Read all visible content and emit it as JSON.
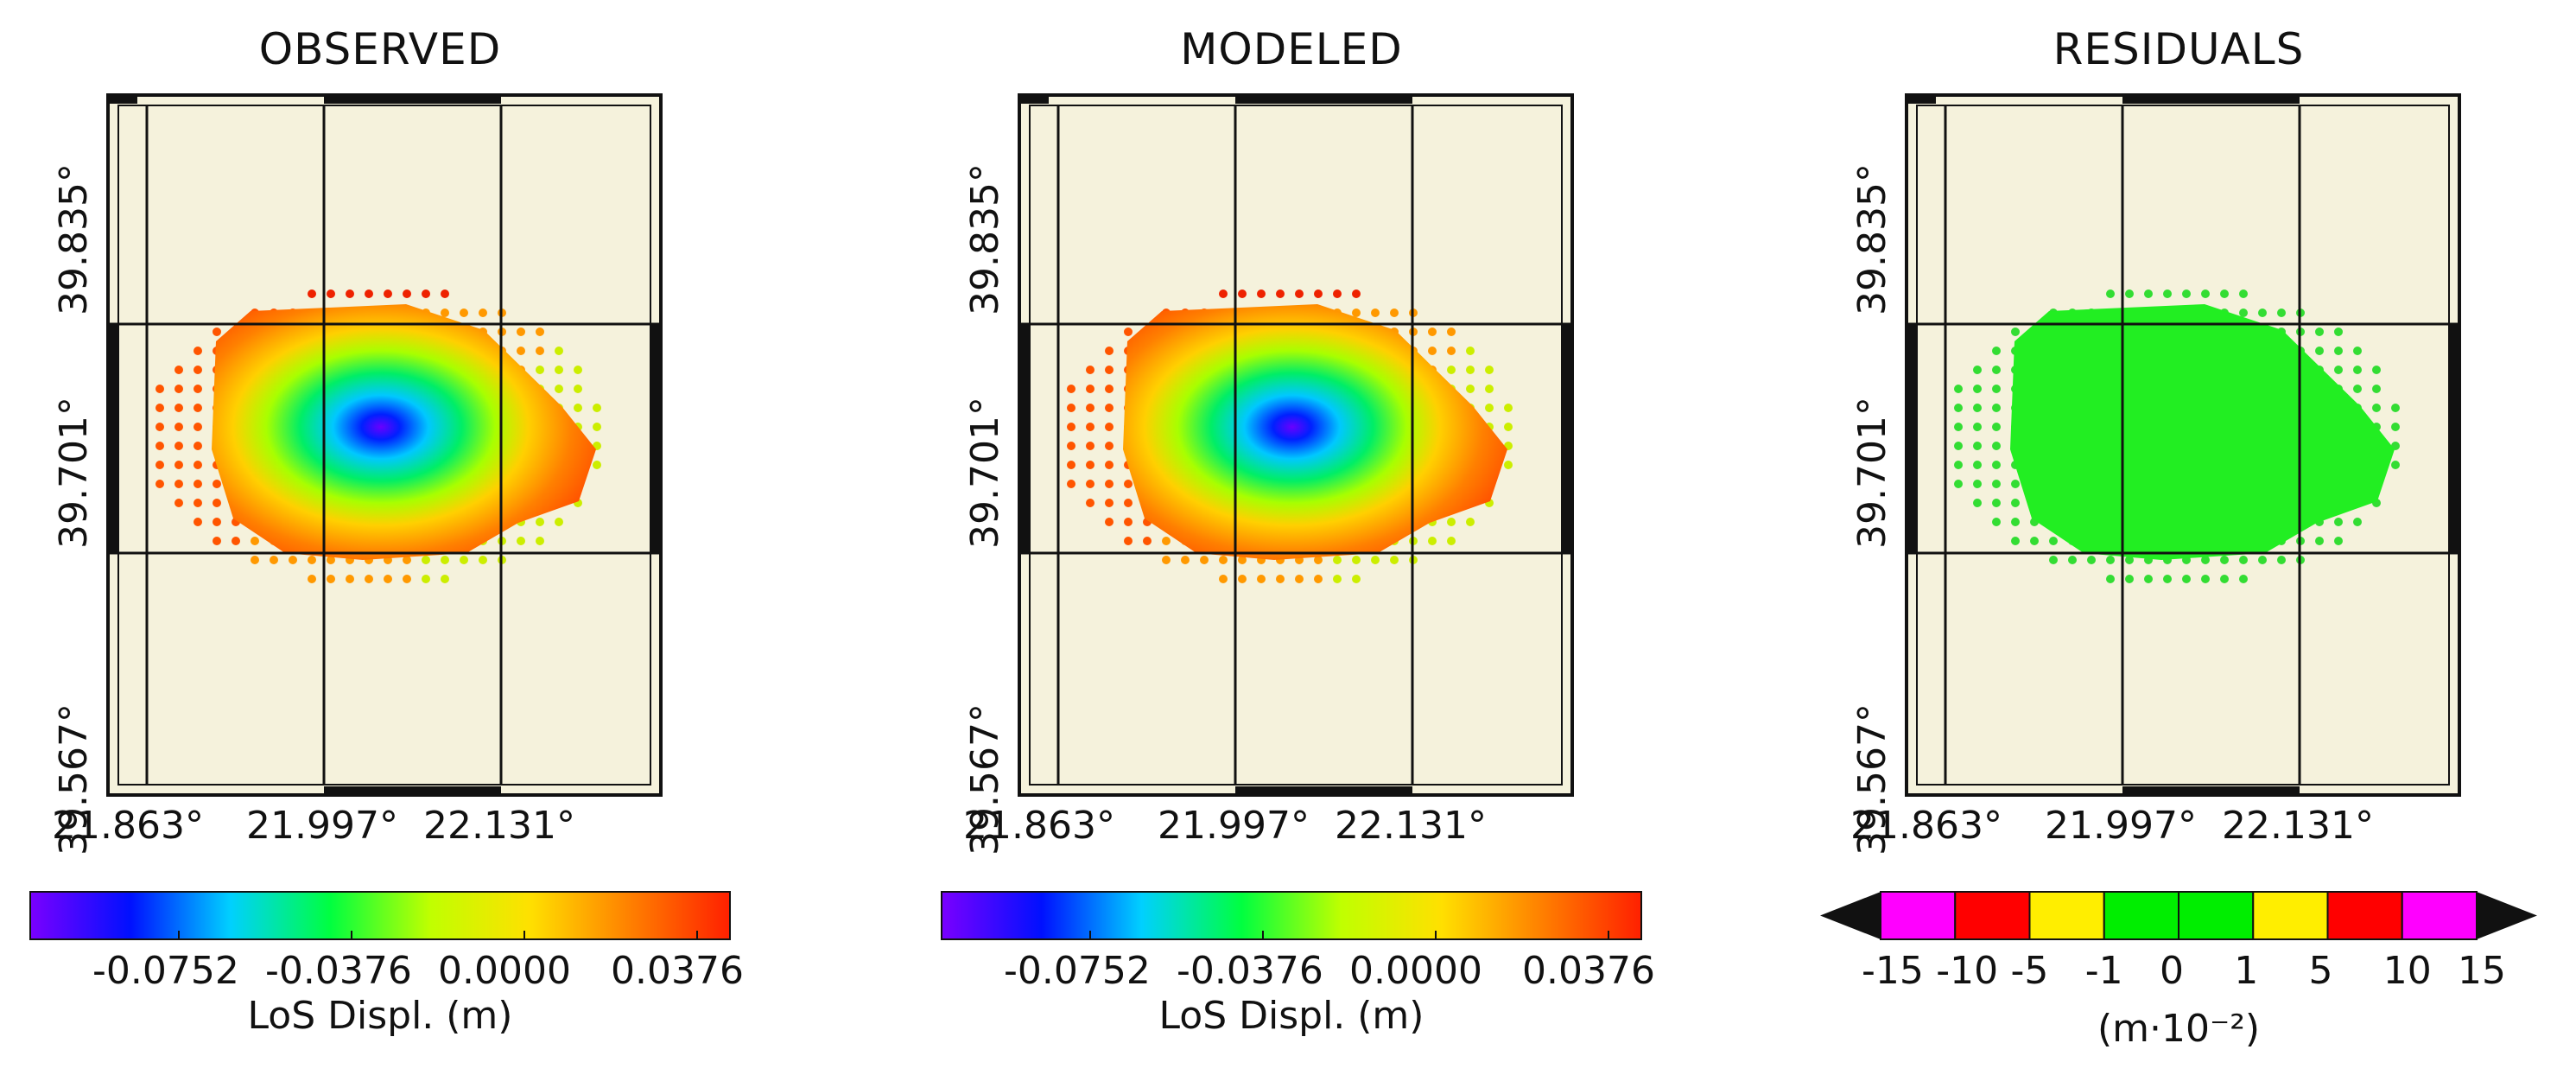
{
  "chart_data": [
    {
      "type": "heatmap",
      "title": "OBSERVED",
      "y_ticks": [
        "39.567°",
        "39.701°",
        "39.835°"
      ],
      "x_ticks": [
        "21.863°",
        "21.997°",
        "22.131°"
      ],
      "colorbar": {
        "label": "LoS Displ. (m)",
        "ticks": [
          "-0.0752",
          "-0.0376",
          "0.0000",
          "0.0376"
        ],
        "colormap": [
          "#7a00ff",
          "#0010ff",
          "#00d0ff",
          "#00ff40",
          "#c0ff00",
          "#ffe000",
          "#ff8000",
          "#ff2000"
        ]
      }
    },
    {
      "type": "heatmap",
      "title": "MODELED",
      "y_ticks": [
        "39.567°",
        "39.701°",
        "39.835°"
      ],
      "x_ticks": [
        "21.863°",
        "21.997°",
        "22.131°"
      ],
      "colorbar": {
        "label": "LoS Displ. (m)",
        "ticks": [
          "-0.0752",
          "-0.0376",
          "0.0000",
          "0.0376"
        ],
        "colormap": [
          "#7a00ff",
          "#0010ff",
          "#00d0ff",
          "#00ff40",
          "#c0ff00",
          "#ffe000",
          "#ff8000",
          "#ff2000"
        ]
      }
    },
    {
      "type": "heatmap",
      "title": "RESIDUALS",
      "y_ticks": [
        "39.567°",
        "39.701°",
        "39.835°"
      ],
      "x_ticks": [
        "21.863°",
        "21.997°",
        "22.131°"
      ],
      "colorbar": {
        "label": "(m·10⁻²)",
        "ticks": [
          "-15",
          "-10",
          "-5",
          "-1",
          "0",
          "1",
          "5",
          "10",
          "15"
        ],
        "bins": [
          "#ff00ff",
          "#ff0000",
          "#ffee00",
          "#00ee00",
          "#00ee00",
          "#ffee00",
          "#ff0000",
          "#ff00ff"
        ]
      }
    }
  ]
}
